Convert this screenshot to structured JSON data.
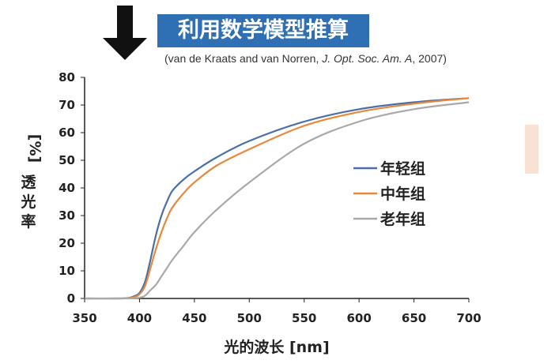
{
  "header": {
    "title": "利用数学模型推算",
    "citation_prefix": "(van de Kraats and van Norren, ",
    "citation_journal": "J. Opt. Soc. Am. A",
    "citation_suffix": ", 2007)"
  },
  "colors": {
    "title_bg": "#2f6fb3",
    "young": "#4a6fa8",
    "middle": "#e8883a",
    "old": "#a9a9a9",
    "side_bar": "#f9e2d3"
  },
  "icons": [
    "down-arrow-icon"
  ],
  "chart_data": {
    "type": "line",
    "xlabel": "光的波长 [nm]",
    "ylabel": "透光率 [%]",
    "ylabel_unit": "[%]",
    "ylabel_text": "透光率",
    "xlim": [
      350,
      700
    ],
    "ylim": [
      0,
      80
    ],
    "xticks": [
      350,
      400,
      450,
      500,
      550,
      600,
      650,
      700
    ],
    "yticks": [
      0,
      10,
      20,
      30,
      40,
      50,
      60,
      70,
      80
    ],
    "grid": false,
    "legend_position": "right",
    "x": [
      350,
      380,
      390,
      395,
      400,
      405,
      410,
      415,
      420,
      425,
      430,
      440,
      450,
      470,
      500,
      550,
      600,
      650,
      700
    ],
    "series": [
      {
        "name": "年轻组",
        "color": "#4a6fa8",
        "values": [
          0,
          0,
          0.2,
          0.8,
          2,
          6,
          14,
          23,
          30,
          35,
          39,
          43,
          46,
          51,
          57,
          64,
          68.5,
          71,
          72.5
        ]
      },
      {
        "name": "中年组",
        "color": "#e8883a",
        "values": [
          0,
          0,
          0.1,
          0.5,
          1.5,
          4.5,
          11,
          18,
          24,
          29,
          33,
          38,
          42,
          48,
          54,
          62.5,
          67.5,
          70.5,
          72.5
        ]
      },
      {
        "name": "老年组",
        "color": "#a9a9a9",
        "values": [
          0,
          0,
          0,
          0.1,
          0.3,
          1,
          3,
          5,
          8,
          11,
          14,
          19,
          24,
          32,
          42,
          56,
          64,
          68.5,
          71
        ]
      }
    ]
  }
}
